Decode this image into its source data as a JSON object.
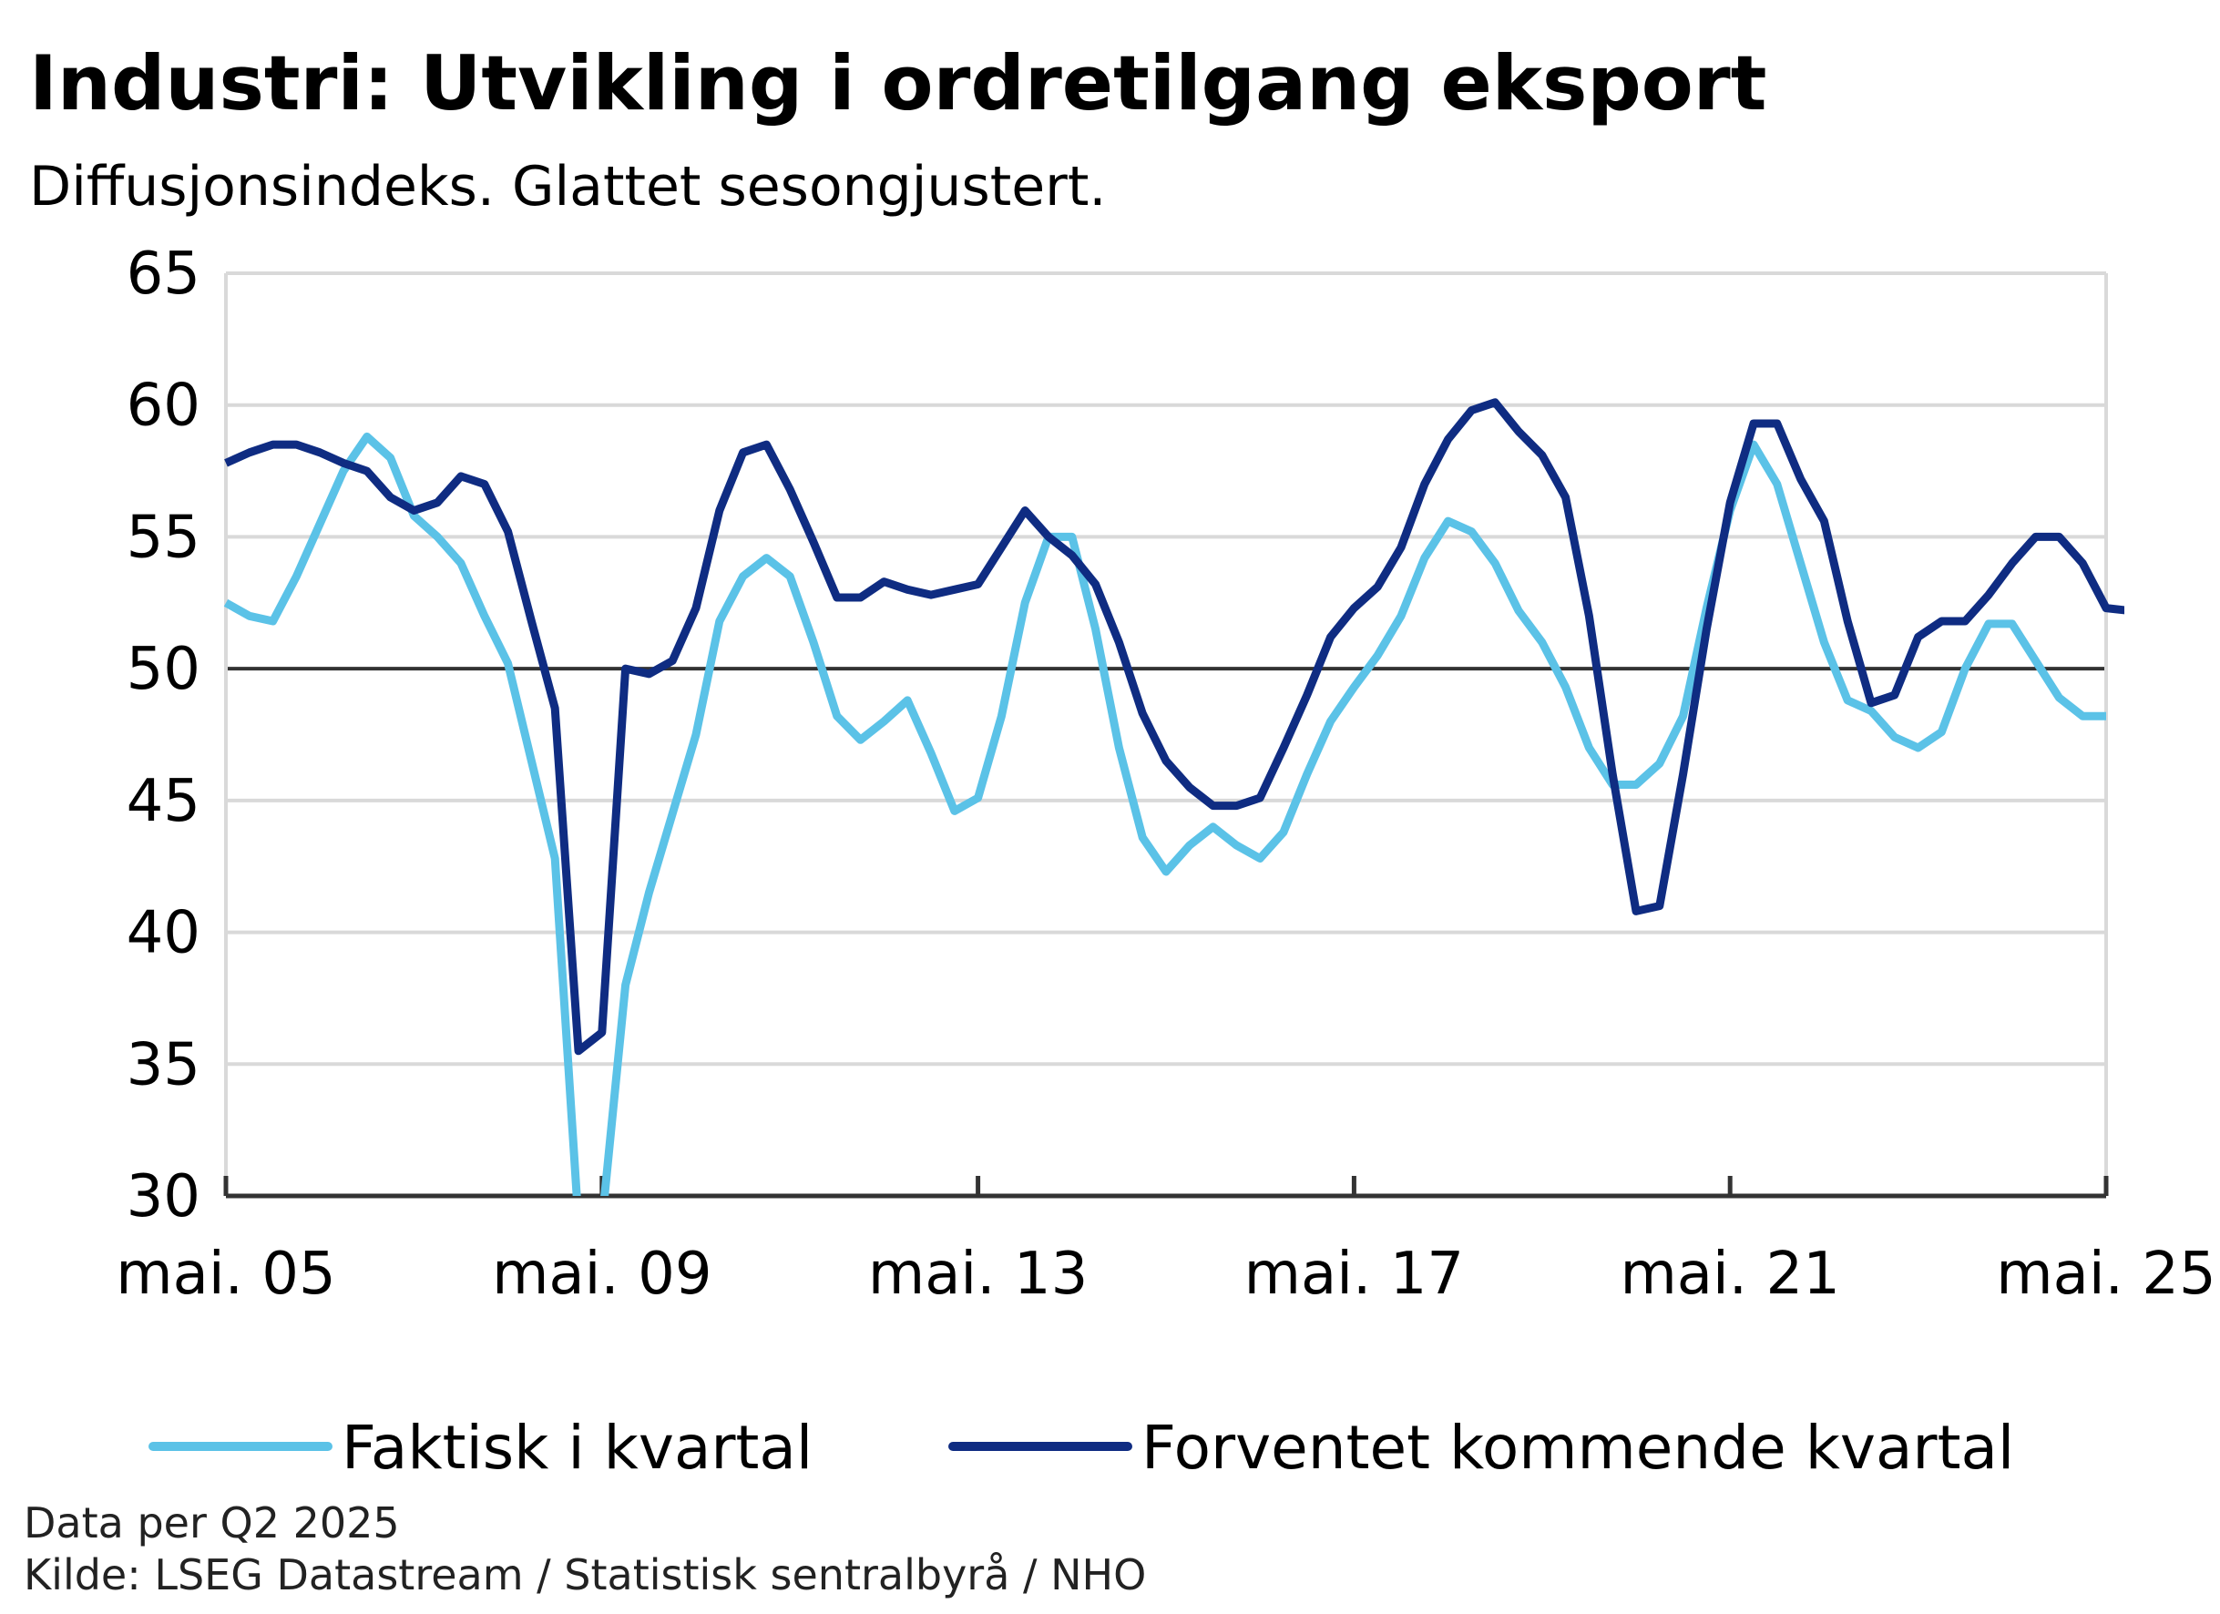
{
  "chart_data": {
    "type": "line",
    "title": "Industri: Utvikling i ordretilgang eksport",
    "subtitle": "Diffusjonsindeks. Glattet sesongjustert.",
    "xlabel": "",
    "ylabel": "",
    "ylim": [
      30,
      65
    ],
    "yticks": [
      "30",
      "35",
      "40",
      "45",
      "50",
      "55",
      "60",
      "65"
    ],
    "xlim": [
      "2005-05",
      "2025-05"
    ],
    "xticks": [
      {
        "label": "mai. 05",
        "date": "2005-05"
      },
      {
        "label": "mai. 09",
        "date": "2009-05"
      },
      {
        "label": "mai. 13",
        "date": "2013-05"
      },
      {
        "label": "mai. 17",
        "date": "2017-05"
      },
      {
        "label": "mai. 21",
        "date": "2021-05"
      },
      {
        "label": "mai. 25",
        "date": "2025-05"
      }
    ],
    "reference_line": 50,
    "grid": true,
    "legend_position": "bottom",
    "series": [
      {
        "name": "Faktisk i kvartal",
        "color": "#5bc2e7",
        "points": [
          [
            "2005-05",
            52.5
          ],
          [
            "2005-08",
            52.0
          ],
          [
            "2005-11",
            51.8
          ],
          [
            "2006-02",
            53.5
          ],
          [
            "2006-05",
            55.5
          ],
          [
            "2006-08",
            57.5
          ],
          [
            "2006-11",
            58.8
          ],
          [
            "2007-02",
            58.0
          ],
          [
            "2007-05",
            55.8
          ],
          [
            "2007-08",
            55.0
          ],
          [
            "2007-11",
            54.0
          ],
          [
            "2008-02",
            52.0
          ],
          [
            "2008-05",
            50.2
          ],
          [
            "2008-08",
            46.5
          ],
          [
            "2008-11",
            42.8
          ],
          [
            "2009-02",
            29.0
          ],
          [
            "2009-05",
            29.0
          ],
          [
            "2009-08",
            38.0
          ],
          [
            "2009-11",
            41.5
          ],
          [
            "2010-02",
            44.5
          ],
          [
            "2010-05",
            47.5
          ],
          [
            "2010-08",
            51.8
          ],
          [
            "2010-11",
            53.5
          ],
          [
            "2011-02",
            54.2
          ],
          [
            "2011-05",
            53.5
          ],
          [
            "2011-08",
            51.0
          ],
          [
            "2011-11",
            48.2
          ],
          [
            "2012-02",
            47.3
          ],
          [
            "2012-05",
            48.0
          ],
          [
            "2012-08",
            48.8
          ],
          [
            "2012-11",
            46.8
          ],
          [
            "2013-02",
            44.6
          ],
          [
            "2013-05",
            45.1
          ],
          [
            "2013-08",
            48.2
          ],
          [
            "2013-11",
            52.5
          ],
          [
            "2014-02",
            55.0
          ],
          [
            "2014-05",
            55.0
          ],
          [
            "2014-08",
            51.5
          ],
          [
            "2014-11",
            47.0
          ],
          [
            "2015-02",
            43.6
          ],
          [
            "2015-05",
            42.3
          ],
          [
            "2015-08",
            43.3
          ],
          [
            "2015-11",
            44.0
          ],
          [
            "2016-02",
            43.3
          ],
          [
            "2016-05",
            42.8
          ],
          [
            "2016-08",
            43.8
          ],
          [
            "2016-11",
            46.0
          ],
          [
            "2017-02",
            48.0
          ],
          [
            "2017-05",
            49.3
          ],
          [
            "2017-08",
            50.5
          ],
          [
            "2017-11",
            52.0
          ],
          [
            "2018-02",
            54.2
          ],
          [
            "2018-05",
            55.6
          ],
          [
            "2018-08",
            55.2
          ],
          [
            "2018-11",
            54.0
          ],
          [
            "2019-02",
            52.2
          ],
          [
            "2019-05",
            51.0
          ],
          [
            "2019-08",
            49.3
          ],
          [
            "2019-11",
            47.0
          ],
          [
            "2020-02",
            45.6
          ],
          [
            "2020-05",
            45.6
          ],
          [
            "2020-08",
            46.4
          ],
          [
            "2020-11",
            48.2
          ],
          [
            "2021-02",
            52.3
          ],
          [
            "2021-05",
            56.0
          ],
          [
            "2021-08",
            58.5
          ],
          [
            "2021-11",
            57.0
          ],
          [
            "2022-02",
            54.0
          ],
          [
            "2022-05",
            51.0
          ],
          [
            "2022-08",
            48.8
          ],
          [
            "2022-11",
            48.4
          ],
          [
            "2023-02",
            47.4
          ],
          [
            "2023-05",
            47.0
          ],
          [
            "2023-08",
            47.6
          ],
          [
            "2023-11",
            50.0
          ],
          [
            "2024-02",
            51.7
          ],
          [
            "2024-05",
            51.7
          ],
          [
            "2024-08",
            50.3
          ],
          [
            "2024-11",
            48.9
          ],
          [
            "2025-02",
            48.2
          ],
          [
            "2025-05",
            48.2
          ]
        ]
      },
      {
        "name": "Forventet kommende kvartal",
        "color": "#0f2c82",
        "points": [
          [
            "2005-05",
            57.8
          ],
          [
            "2005-08",
            58.2
          ],
          [
            "2005-11",
            58.5
          ],
          [
            "2006-02",
            58.5
          ],
          [
            "2006-05",
            58.2
          ],
          [
            "2006-08",
            57.8
          ],
          [
            "2006-11",
            57.5
          ],
          [
            "2007-02",
            56.5
          ],
          [
            "2007-05",
            56.0
          ],
          [
            "2007-08",
            56.3
          ],
          [
            "2007-11",
            57.3
          ],
          [
            "2008-02",
            57.0
          ],
          [
            "2008-05",
            55.2
          ],
          [
            "2008-08",
            51.8
          ],
          [
            "2008-11",
            48.5
          ],
          [
            "2009-02",
            35.5
          ],
          [
            "2009-05",
            36.2
          ],
          [
            "2009-08",
            50.0
          ],
          [
            "2009-11",
            49.8
          ],
          [
            "2010-02",
            50.3
          ],
          [
            "2010-05",
            52.3
          ],
          [
            "2010-08",
            56.0
          ],
          [
            "2010-11",
            58.2
          ],
          [
            "2011-02",
            58.5
          ],
          [
            "2011-05",
            56.8
          ],
          [
            "2011-08",
            54.8
          ],
          [
            "2011-11",
            52.7
          ],
          [
            "2012-02",
            52.7
          ],
          [
            "2012-05",
            53.3
          ],
          [
            "2012-08",
            53.0
          ],
          [
            "2012-11",
            52.8
          ],
          [
            "2013-02",
            53.0
          ],
          [
            "2013-05",
            53.2
          ],
          [
            "2013-08",
            54.6
          ],
          [
            "2013-11",
            56.0
          ],
          [
            "2014-02",
            55.0
          ],
          [
            "2014-05",
            54.3
          ],
          [
            "2014-08",
            53.2
          ],
          [
            "2014-11",
            51.0
          ],
          [
            "2015-02",
            48.3
          ],
          [
            "2015-05",
            46.5
          ],
          [
            "2015-08",
            45.5
          ],
          [
            "2015-11",
            44.8
          ],
          [
            "2016-02",
            44.8
          ],
          [
            "2016-05",
            45.1
          ],
          [
            "2016-08",
            47.0
          ],
          [
            "2016-11",
            49.0
          ],
          [
            "2017-02",
            51.2
          ],
          [
            "2017-05",
            52.3
          ],
          [
            "2017-08",
            53.1
          ],
          [
            "2017-11",
            54.6
          ],
          [
            "2018-02",
            57.0
          ],
          [
            "2018-05",
            58.7
          ],
          [
            "2018-08",
            59.8
          ],
          [
            "2018-11",
            60.1
          ],
          [
            "2019-02",
            59.0
          ],
          [
            "2019-05",
            58.1
          ],
          [
            "2019-08",
            56.5
          ],
          [
            "2019-11",
            52.0
          ],
          [
            "2020-02",
            46.0
          ],
          [
            "2020-05",
            40.8
          ],
          [
            "2020-08",
            41.0
          ],
          [
            "2020-11",
            46.0
          ],
          [
            "2021-02",
            51.5
          ],
          [
            "2021-05",
            56.3
          ],
          [
            "2021-08",
            59.3
          ],
          [
            "2021-11",
            59.3
          ],
          [
            "2022-02",
            57.2
          ],
          [
            "2022-05",
            55.6
          ],
          [
            "2022-08",
            51.8
          ],
          [
            "2022-11",
            48.7
          ],
          [
            "2023-02",
            49.0
          ],
          [
            "2023-05",
            51.2
          ],
          [
            "2023-08",
            51.8
          ],
          [
            "2023-11",
            51.8
          ],
          [
            "2024-02",
            52.8
          ],
          [
            "2024-05",
            54.0
          ],
          [
            "2024-08",
            55.0
          ],
          [
            "2024-11",
            55.0
          ],
          [
            "2025-02",
            54.0
          ],
          [
            "2025-05",
            52.3
          ],
          [
            "2025-08",
            52.2
          ]
        ]
      }
    ]
  },
  "footer": {
    "data_note": "Data per Q2 2025",
    "source": "Kilde: LSEG Datastream / Statistisk sentralbyrå / NHO"
  }
}
